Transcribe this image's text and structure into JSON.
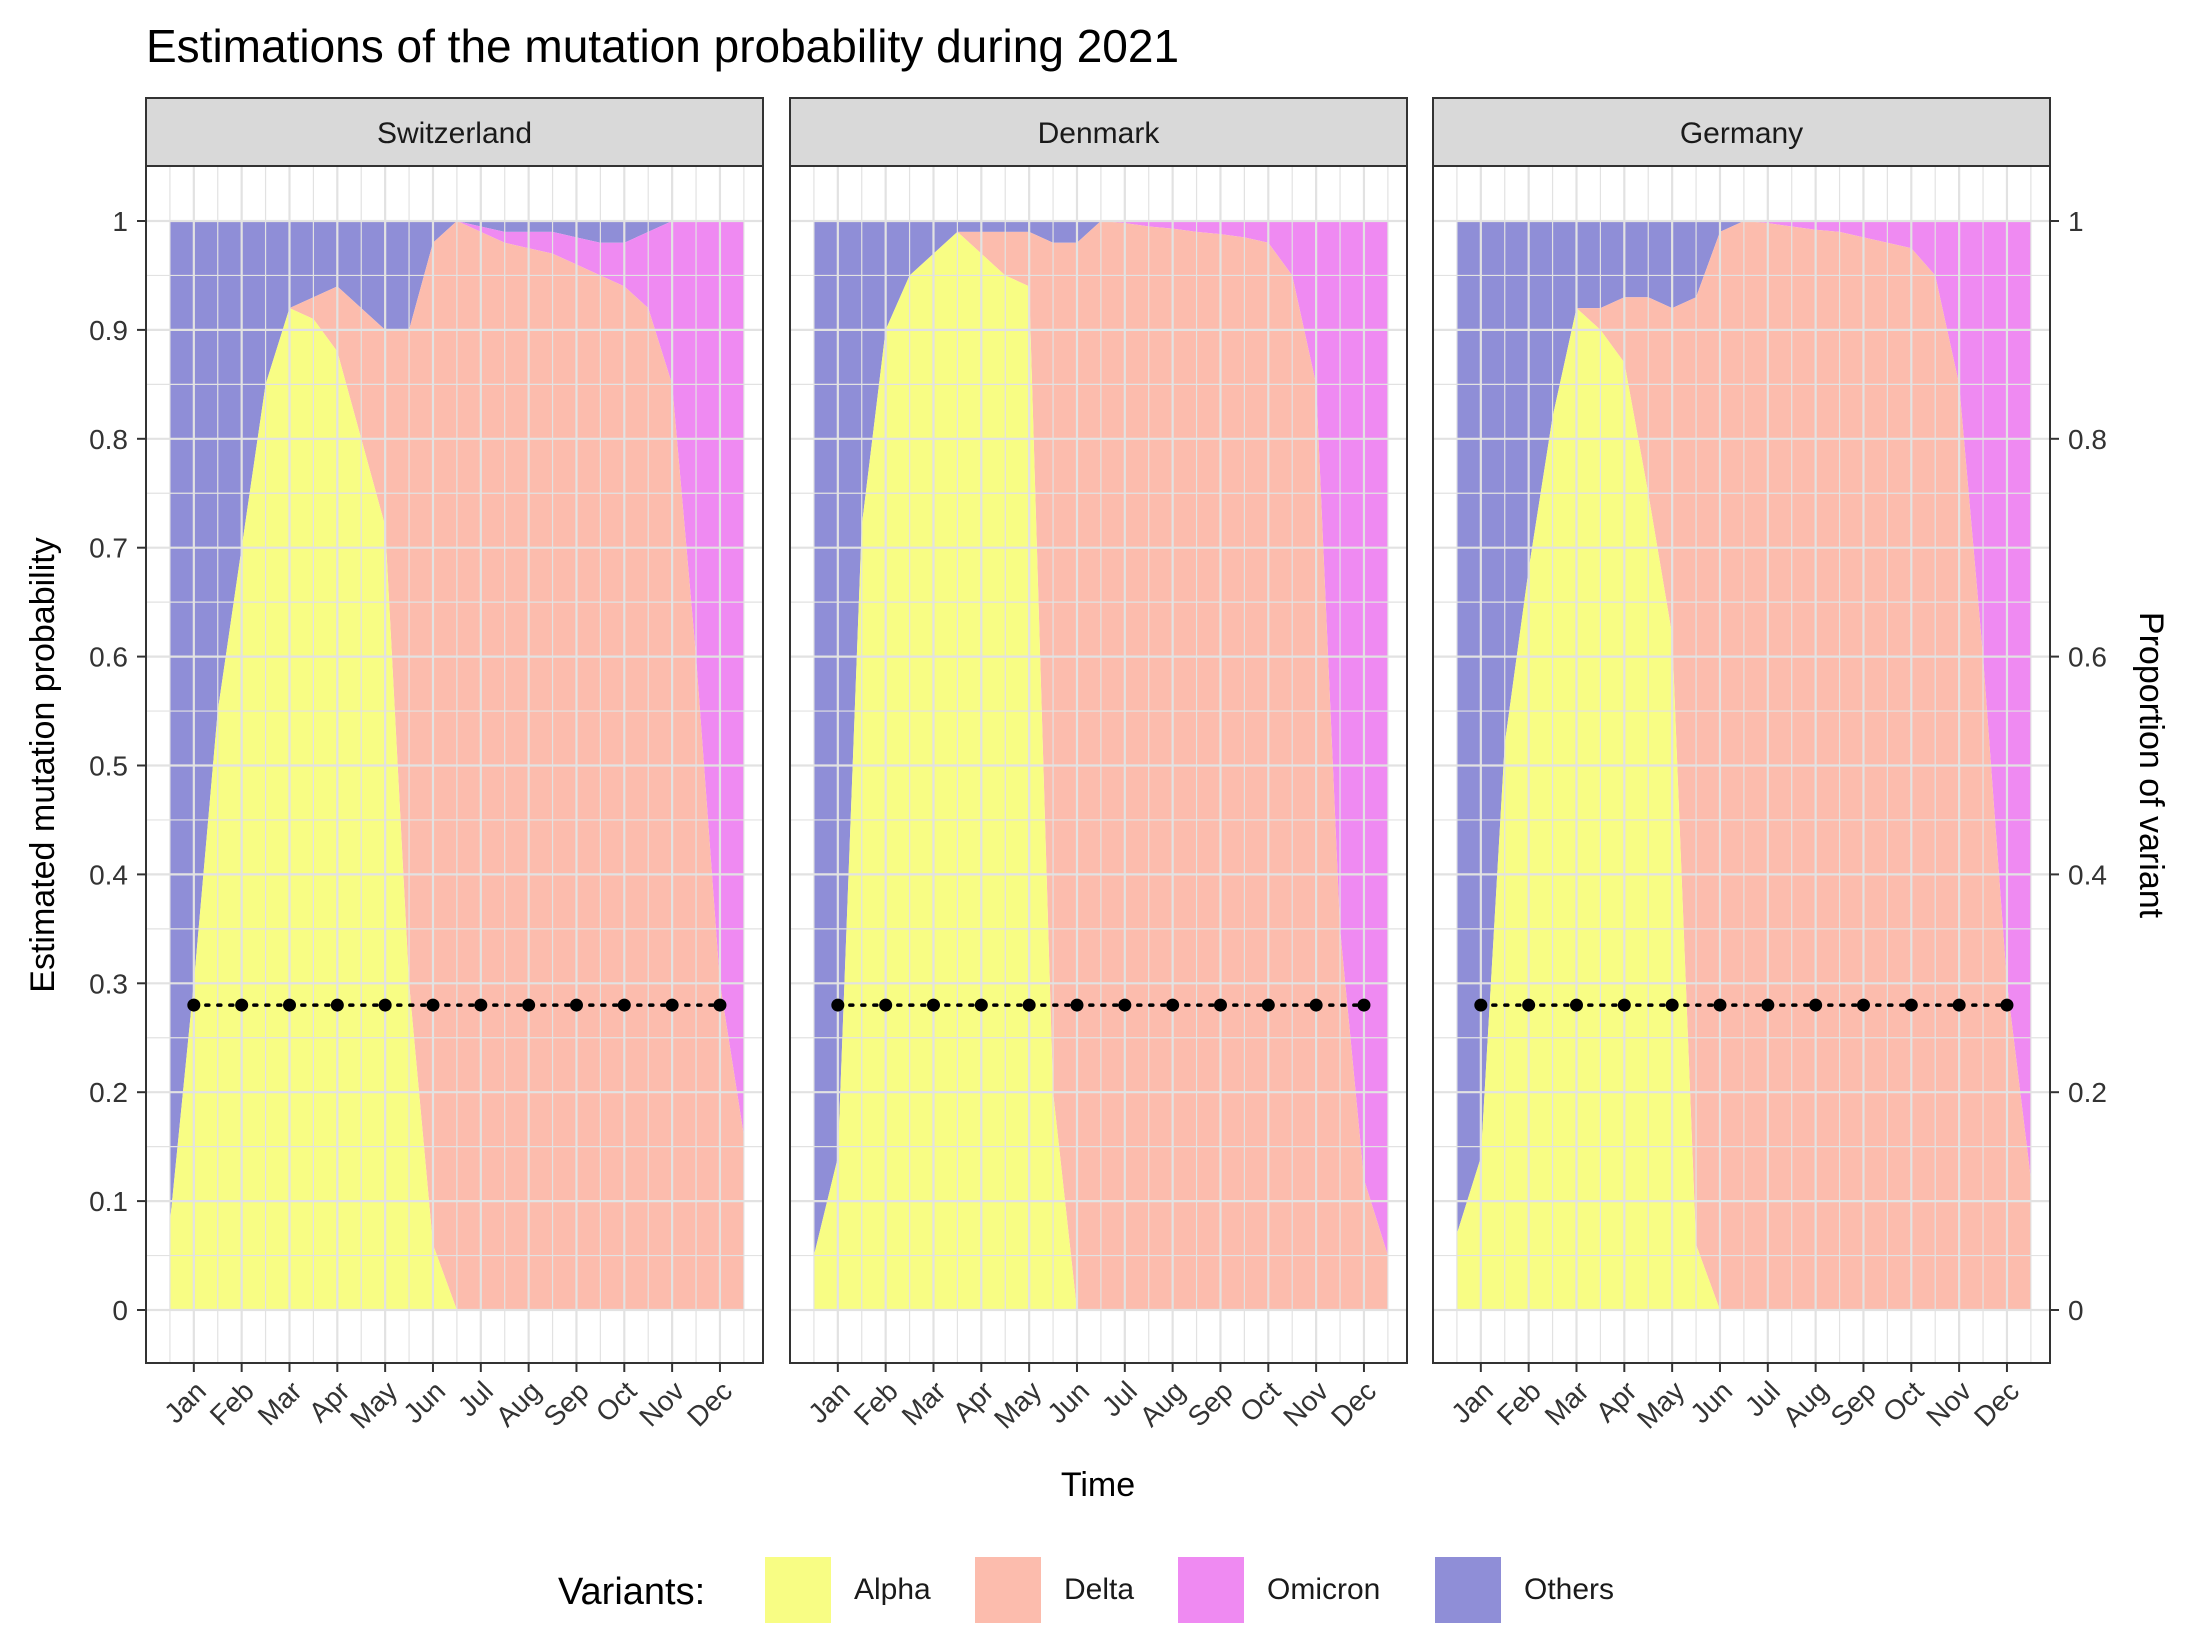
{
  "chart_data": {
    "type": "area",
    "title": "Estimations of the mutation probability during 2021",
    "xlabel": "Time",
    "ylabel": "Estimated mutation probability",
    "ylabel_right": "Proportion of variant",
    "x_ticks": [
      "Jan",
      "Feb",
      "Mar",
      "Apr",
      "May",
      "Jun",
      "Jul",
      "Aug",
      "Sep",
      "Oct",
      "Nov",
      "Dec"
    ],
    "y_ticks_left": [
      "0",
      "0.1",
      "0.2",
      "0.3",
      "0.4",
      "0.5",
      "0.6",
      "0.7",
      "0.8",
      "0.9",
      "1"
    ],
    "y_ticks_right": [
      "0",
      "0.2",
      "0.4",
      "0.6",
      "0.8",
      "1"
    ],
    "ylim": [
      0,
      1
    ],
    "stacking": "proportions stacked bottom to top: Alpha, Delta, Omicron, Others",
    "grid": true,
    "legend": {
      "title": "Variants:",
      "position": "bottom",
      "items": [
        {
          "name": "Alpha",
          "color": "#f8fd84"
        },
        {
          "name": "Delta",
          "color": "#fcbcad"
        },
        {
          "name": "Omicron",
          "color": "#ef8af2"
        },
        {
          "name": "Others",
          "color": "#8f8ed7"
        }
      ]
    },
    "panels": [
      {
        "name": "Switzerland",
        "x": [
          0.5,
          1.0,
          1.5,
          2.0,
          2.5,
          3.0,
          3.5,
          4.0,
          4.5,
          5.0,
          5.5,
          6.0,
          6.5,
          7.0,
          7.5,
          8.0,
          8.5,
          9.0,
          9.5,
          10.0,
          10.5,
          11.0,
          11.5,
          12.0,
          12.5
        ],
        "alpha": [
          0.08,
          0.3,
          0.55,
          0.7,
          0.85,
          0.92,
          0.91,
          0.88,
          0.8,
          0.72,
          0.3,
          0.06,
          0.0,
          0,
          0,
          0,
          0,
          0,
          0,
          0,
          0,
          0,
          0,
          0,
          0
        ],
        "delta": [
          0,
          0,
          0,
          0,
          0,
          0,
          0.02,
          0.06,
          0.12,
          0.18,
          0.6,
          0.92,
          1.0,
          0.99,
          0.98,
          0.975,
          0.97,
          0.96,
          0.95,
          0.94,
          0.92,
          0.85,
          0.6,
          0.3,
          0.16
        ],
        "omicron": [
          0,
          0,
          0,
          0,
          0,
          0,
          0,
          0,
          0,
          0,
          0,
          0,
          0,
          0.005,
          0.01,
          0.015,
          0.02,
          0.025,
          0.03,
          0.04,
          0.07,
          0.15,
          0.4,
          0.7,
          0.84
        ],
        "mutation_probability": [
          0.28,
          0.28,
          0.28,
          0.28,
          0.28,
          0.28,
          0.28,
          0.28,
          0.28,
          0.28,
          0.28,
          0.28
        ]
      },
      {
        "name": "Denmark",
        "x": [
          0.5,
          1.0,
          1.5,
          2.0,
          2.5,
          3.0,
          3.5,
          4.0,
          4.5,
          5.0,
          5.5,
          6.0,
          6.5,
          7.0,
          7.5,
          8.0,
          8.5,
          9.0,
          9.5,
          10.0,
          10.5,
          11.0,
          11.5,
          12.0,
          12.5
        ],
        "alpha": [
          0.05,
          0.14,
          0.72,
          0.9,
          0.95,
          0.97,
          0.99,
          0.97,
          0.95,
          0.94,
          0.2,
          0.0,
          0,
          0,
          0,
          0,
          0,
          0,
          0,
          0,
          0,
          0,
          0,
          0,
          0
        ],
        "delta": [
          0,
          0,
          0,
          0,
          0,
          0,
          0,
          0.02,
          0.04,
          0.05,
          0.78,
          0.98,
          1.0,
          0.998,
          0.995,
          0.993,
          0.99,
          0.988,
          0.985,
          0.98,
          0.95,
          0.85,
          0.35,
          0.12,
          0.05
        ],
        "omicron": [
          0,
          0,
          0,
          0,
          0,
          0,
          0,
          0,
          0,
          0,
          0,
          0,
          0,
          0.002,
          0.005,
          0.007,
          0.01,
          0.012,
          0.015,
          0.02,
          0.05,
          0.15,
          0.65,
          0.88,
          0.95
        ],
        "mutation_probability": [
          0.28,
          0.28,
          0.28,
          0.28,
          0.28,
          0.28,
          0.28,
          0.28,
          0.28,
          0.28,
          0.28,
          0.28
        ]
      },
      {
        "name": "Germany",
        "x": [
          0.5,
          1.0,
          1.5,
          2.0,
          2.5,
          3.0,
          3.5,
          4.0,
          4.5,
          5.0,
          5.5,
          6.0,
          6.5,
          7.0,
          7.5,
          8.0,
          8.5,
          9.0,
          9.5,
          10.0,
          10.5,
          11.0,
          11.5,
          12.0,
          12.5
        ],
        "alpha": [
          0.07,
          0.14,
          0.52,
          0.68,
          0.82,
          0.92,
          0.9,
          0.87,
          0.75,
          0.62,
          0.06,
          0.0,
          0,
          0,
          0,
          0,
          0,
          0,
          0,
          0,
          0,
          0,
          0,
          0,
          0
        ],
        "delta": [
          0,
          0,
          0,
          0,
          0,
          0,
          0.02,
          0.06,
          0.18,
          0.3,
          0.87,
          0.99,
          1.0,
          0.998,
          0.995,
          0.992,
          0.99,
          0.985,
          0.98,
          0.975,
          0.95,
          0.85,
          0.6,
          0.3,
          0.12
        ],
        "omicron": [
          0,
          0,
          0,
          0,
          0,
          0,
          0,
          0,
          0,
          0,
          0,
          0,
          0,
          0.002,
          0.005,
          0.008,
          0.01,
          0.015,
          0.02,
          0.025,
          0.05,
          0.15,
          0.4,
          0.7,
          0.88
        ],
        "mutation_probability": [
          0.28,
          0.28,
          0.28,
          0.28,
          0.28,
          0.28,
          0.28,
          0.28,
          0.28,
          0.28,
          0.28,
          0.28
        ]
      }
    ]
  }
}
